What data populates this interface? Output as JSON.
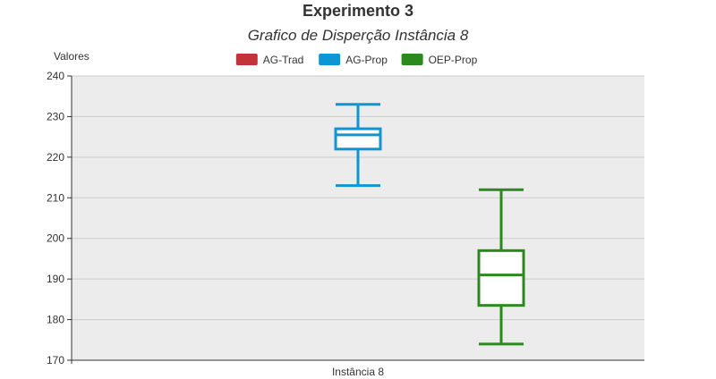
{
  "chart_data": {
    "type": "boxplot",
    "title": "Experimento 3",
    "subtitle": "Grafico de Disperção Instância 8",
    "ylabel": "Valores",
    "xlabel": "",
    "categories": [
      "Instância 8"
    ],
    "ylim": [
      170,
      240
    ],
    "yticks": [
      170,
      180,
      190,
      200,
      210,
      220,
      230,
      240
    ],
    "grid": true,
    "legend_position": "top-center",
    "series": [
      {
        "name": "AG-Trad",
        "color": "#c4323a",
        "min": null,
        "q1": null,
        "median": null,
        "q3": null,
        "max": null
      },
      {
        "name": "AG-Prop",
        "color": "#0e95d3",
        "min": 213,
        "q1": 222,
        "median": 225.5,
        "q3": 227,
        "max": 233
      },
      {
        "name": "OEP-Prop",
        "color": "#2a8a1e",
        "min": 174,
        "q1": 183.5,
        "median": 191,
        "q3": 197,
        "max": 212
      }
    ]
  },
  "style": {
    "plot_background": "#ececec",
    "grid_color": "#cccccc",
    "axis_color": "#333333"
  }
}
